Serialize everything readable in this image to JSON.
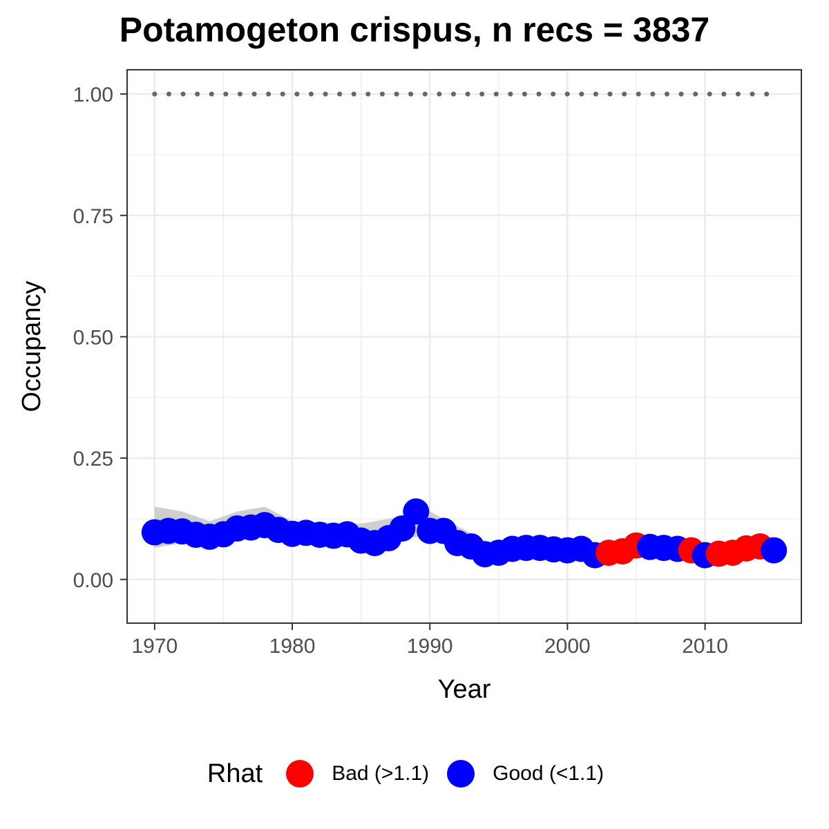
{
  "chart_data": {
    "type": "scatter",
    "title": "Potamogeton crispus, n recs = 3837",
    "xlabel": "Year",
    "ylabel": "Occupancy",
    "xlim": [
      1968,
      2017
    ],
    "ylim": [
      -0.09,
      1.05
    ],
    "xticks": [
      1970,
      1980,
      1990,
      2000,
      2010
    ],
    "yticks": [
      0.0,
      0.25,
      0.5,
      0.75,
      1.0
    ],
    "ytick_labels": [
      "0.00",
      "0.25",
      "0.50",
      "0.75",
      "1.00"
    ],
    "grid": true,
    "legend": {
      "title": "Rhat",
      "position": "bottom",
      "entries": [
        {
          "label": "Bad (>1.1)",
          "color": "#ff0000"
        },
        {
          "label": "Good (<1.1)",
          "color": "#0000ff"
        }
      ]
    },
    "reference_line": {
      "y": 1.0,
      "style": "dotted",
      "color": "#666666",
      "x_range": [
        1970,
        2015
      ]
    },
    "ribbon_color": "#bfbfbf",
    "series": [
      {
        "name": "Bad (>1.1)",
        "color": "#ff0000",
        "x": [
          2003,
          2004,
          2005,
          2009,
          2011,
          2012,
          2013,
          2014
        ],
        "y": [
          0.055,
          0.058,
          0.07,
          0.06,
          0.053,
          0.055,
          0.064,
          0.068
        ]
      },
      {
        "name": "Good (<1.1)",
        "color": "#0000ff",
        "x": [
          1970,
          1971,
          1972,
          1973,
          1974,
          1975,
          1976,
          1977,
          1978,
          1979,
          1980,
          1981,
          1982,
          1983,
          1984,
          1985,
          1986,
          1987,
          1988,
          1989,
          1990,
          1991,
          1992,
          1993,
          1994,
          1995,
          1996,
          1997,
          1998,
          1999,
          2000,
          2001,
          2002,
          2006,
          2007,
          2008,
          2010,
          2015
        ],
        "y": [
          0.097,
          0.1,
          0.099,
          0.092,
          0.088,
          0.093,
          0.105,
          0.107,
          0.112,
          0.102,
          0.094,
          0.096,
          0.092,
          0.09,
          0.093,
          0.08,
          0.075,
          0.085,
          0.105,
          0.14,
          0.1,
          0.1,
          0.075,
          0.068,
          0.052,
          0.055,
          0.063,
          0.065,
          0.065,
          0.062,
          0.06,
          0.063,
          0.05,
          0.067,
          0.065,
          0.063,
          0.05,
          0.06
        ]
      }
    ],
    "ribbon": {
      "x": [
        1970,
        1972,
        1974,
        1976,
        1978,
        1980,
        1985,
        1990,
        1995,
        2000,
        2005,
        2010,
        2015
      ],
      "lower": [
        0.065,
        0.075,
        0.075,
        0.085,
        0.09,
        0.085,
        0.075,
        0.09,
        0.045,
        0.05,
        0.055,
        0.045,
        0.05
      ],
      "upper": [
        0.15,
        0.14,
        0.12,
        0.14,
        0.15,
        0.12,
        0.115,
        0.14,
        0.065,
        0.07,
        0.08,
        0.065,
        0.07
      ]
    }
  }
}
